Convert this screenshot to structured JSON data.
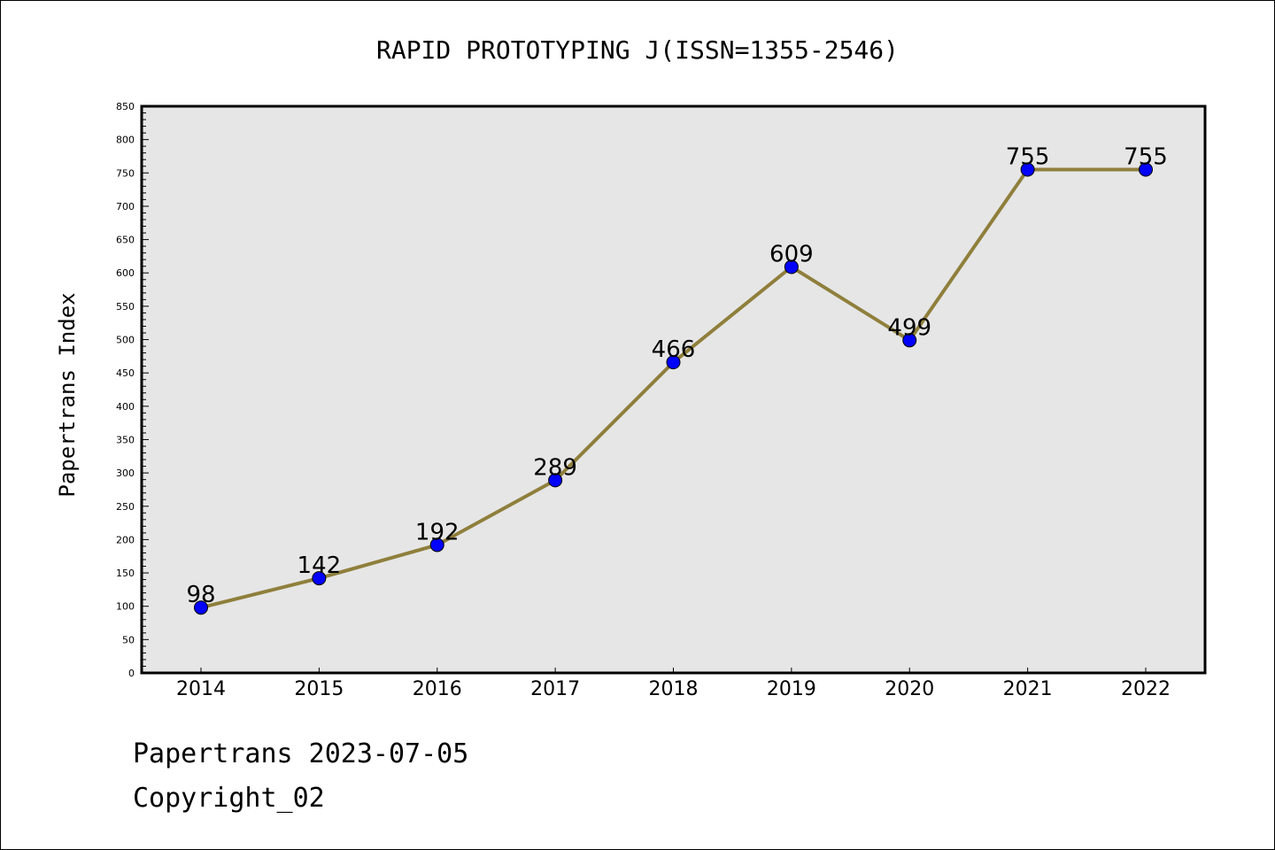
{
  "footer": {
    "line1": "Papertrans 2023-07-05",
    "line2": "Copyright_02"
  },
  "chart_data": {
    "type": "line",
    "title": "RAPID PROTOTYPING J(ISSN=1355-2546)",
    "xlabel": "",
    "ylabel": "Papertrans Index",
    "categories": [
      "2014",
      "2015",
      "2016",
      "2017",
      "2018",
      "2019",
      "2020",
      "2021",
      "2022"
    ],
    "series": [
      {
        "values": [
          98,
          142,
          192,
          289,
          466,
          609,
          499,
          755,
          755
        ],
        "data_labels": [
          "98",
          "142",
          "192",
          "289",
          "466",
          "609",
          "499",
          "755",
          "755"
        ],
        "line_color": "#8f7f3c",
        "marker_color": "#0000ff"
      }
    ],
    "ylim": [
      0,
      850
    ],
    "yticks": [
      "0",
      "50",
      "100",
      "150",
      "200",
      "250",
      "300",
      "350",
      "400",
      "450",
      "500",
      "550",
      "600",
      "650",
      "700",
      "750",
      "800",
      "850"
    ],
    "plot_background": "#e6e6e6",
    "grid": false,
    "legend": "none"
  }
}
